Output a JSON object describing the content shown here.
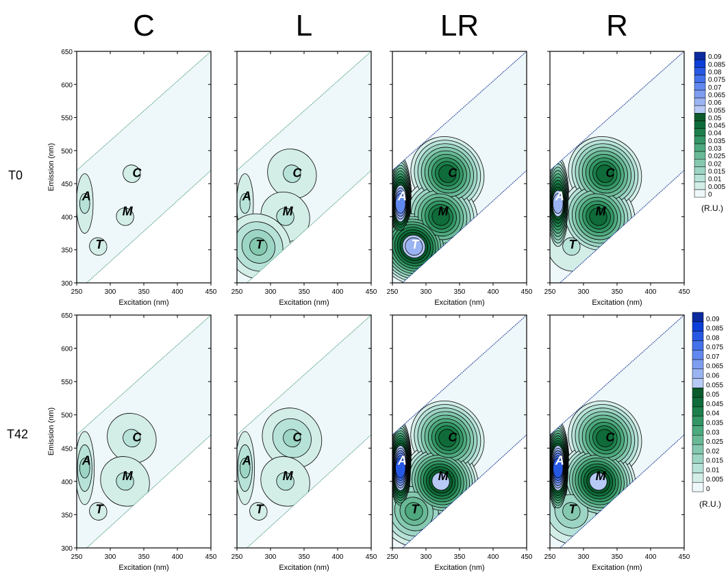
{
  "chart_data": {
    "type": "heatmap",
    "panel_titles": [
      "C",
      "L",
      "LR",
      "R"
    ],
    "row_labels": [
      "T0",
      "T42"
    ],
    "xlabel": "Excitation (nm)",
    "ylabel": "Emission (nm)",
    "xlim": [
      250,
      450
    ],
    "ylim": [
      300,
      650
    ],
    "xticks": [
      "250",
      "300",
      "350",
      "400",
      "450"
    ],
    "yticks": [
      "300",
      "350",
      "400",
      "450",
      "500",
      "550",
      "600",
      "650"
    ],
    "colorbar": {
      "unit": "(R.U.)",
      "levels": [
        "0",
        "0.005",
        "0.01",
        "0.015",
        "0.02",
        "0.025",
        "0.03",
        "0.035",
        "0.04",
        "0.045",
        "0.05",
        "0.055",
        "0.06",
        "0.065",
        "0.07",
        "0.075",
        "0.08",
        "0.085",
        "0.09"
      ],
      "colors": [
        "#ffffff",
        "#eef7f9",
        "#d3ede7",
        "#b7e2d8",
        "#9dd5c4",
        "#84c8af",
        "#69b996",
        "#4ea97e",
        "#349565",
        "#1d7f4b",
        "#0f6b39",
        "#0a5a2c",
        "#b7c9f5",
        "#9ab3f2",
        "#7e9df0",
        "#6188ee",
        "#4371ea",
        "#2758e4",
        "#0b3fd8",
        "#0a2a9e"
      ]
    },
    "region_labels": [
      "A",
      "C",
      "M",
      "T"
    ],
    "panels": [
      {
        "row": "T0",
        "title": "C",
        "peaks": {
          "A": 0.01,
          "C": 0.005,
          "M": 0.005,
          "T": 0.005
        }
      },
      {
        "row": "T0",
        "title": "L",
        "peaks": {
          "A": 0.01,
          "C": 0.01,
          "M": 0.01,
          "T": 0.02
        }
      },
      {
        "row": "T0",
        "title": "LR",
        "peaks": {
          "A": 0.07,
          "C": 0.045,
          "M": 0.045,
          "T": 0.06
        }
      },
      {
        "row": "T0",
        "title": "R",
        "peaks": {
          "A": 0.06,
          "C": 0.045,
          "M": 0.045,
          "T": 0.01
        }
      },
      {
        "row": "T42",
        "title": "C",
        "peaks": {
          "A": 0.015,
          "C": 0.01,
          "M": 0.01,
          "T": 0.005
        }
      },
      {
        "row": "T42",
        "title": "L",
        "peaks": {
          "A": 0.015,
          "C": 0.015,
          "M": 0.01,
          "T": 0.005
        }
      },
      {
        "row": "T42",
        "title": "LR",
        "peaks": {
          "A": 0.08,
          "C": 0.045,
          "M": 0.055,
          "T": 0.03
        }
      },
      {
        "row": "T42",
        "title": "R",
        "peaks": {
          "A": 0.08,
          "C": 0.045,
          "M": 0.055,
          "T": 0.02
        }
      }
    ]
  }
}
